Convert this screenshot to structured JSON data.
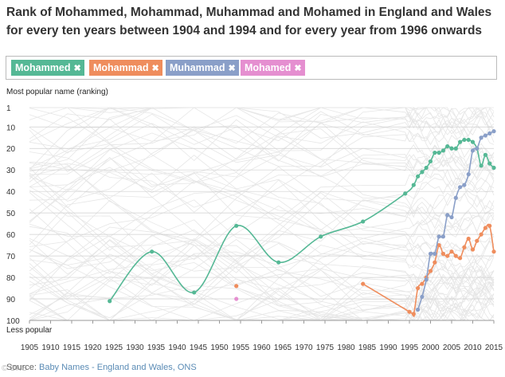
{
  "title": "Rank of Mohammed, Mohammad, Muhammad and Mohamed in England and Wales for every ten years between 1904 and 1994 and for every year from 1996 onwards",
  "filter_chips": [
    {
      "label": "Mohammed",
      "remove_icon": "✖",
      "color": "#55b895"
    },
    {
      "label": "Mohammad",
      "remove_icon": "✖",
      "color": "#ef8d5d"
    },
    {
      "label": "Muhammad",
      "remove_icon": "✖",
      "color": "#8a9fc8"
    },
    {
      "label": "Mohamed",
      "remove_icon": "✖",
      "color": "#e58fd0"
    }
  ],
  "y_axis_top_label": "Most popular name (ranking)",
  "y_axis_bottom_label": "Less popular",
  "source": {
    "label": "Source:",
    "link_text": "Baby Names - England and Wales, ONS"
  },
  "watermark": "© ONS",
  "chart_data": {
    "type": "line",
    "xlim": [
      1905,
      2015
    ],
    "ylim": [
      100,
      1
    ],
    "y_reversed": true,
    "x_ticks": [
      1905,
      1910,
      1915,
      1920,
      1925,
      1930,
      1935,
      1940,
      1945,
      1950,
      1955,
      1960,
      1965,
      1970,
      1975,
      1980,
      1985,
      1990,
      1995,
      2000,
      2005,
      2010,
      2015
    ],
    "y_ticks": [
      1,
      10,
      20,
      30,
      40,
      50,
      60,
      70,
      80,
      90,
      100
    ],
    "grid": true,
    "series": [
      {
        "name": "Mohammed",
        "color": "#55b895",
        "x": [
          1924,
          1934,
          1944,
          1954,
          1964,
          1974,
          1984,
          1994,
          1996,
          1997,
          1998,
          1999,
          2000,
          2001,
          2002,
          2003,
          2004,
          2005,
          2006,
          2007,
          2008,
          2009,
          2010,
          2011,
          2012,
          2013,
          2014,
          2015
        ],
        "y": [
          91,
          68,
          87,
          56,
          73,
          61,
          54,
          41,
          37,
          33,
          31,
          29,
          26,
          22,
          22,
          21,
          19,
          20,
          20,
          17,
          16,
          16,
          17,
          20,
          28,
          23,
          27,
          29
        ]
      },
      {
        "name": "Mohammad",
        "color": "#ef8d5d",
        "x": [
          1954,
          1984,
          1995,
          1996,
          1997,
          1998,
          1999,
          2000,
          2001,
          2002,
          2003,
          2004,
          2005,
          2006,
          2007,
          2008,
          2009,
          2010,
          2011,
          2012,
          2013,
          2014,
          2015
        ],
        "y": [
          84,
          83,
          96,
          97,
          85,
          83,
          80,
          77,
          73,
          65,
          69,
          70,
          68,
          70,
          71,
          66,
          62,
          67,
          63,
          60,
          57,
          56,
          68
        ]
      },
      {
        "name": "Muhammad",
        "color": "#8a9fc8",
        "x": [
          1997,
          1998,
          1999,
          2000,
          2001,
          2002,
          2003,
          2004,
          2005,
          2006,
          2007,
          2008,
          2009,
          2010,
          2011,
          2012,
          2013,
          2014,
          2015
        ],
        "y": [
          95,
          89,
          81,
          69,
          69,
          61,
          61,
          51,
          52,
          43,
          38,
          37,
          32,
          21,
          20,
          15,
          14,
          13,
          12
        ]
      },
      {
        "name": "Mohamed",
        "color": "#e58fd0",
        "x": [
          1954
        ],
        "y": [
          90
        ]
      }
    ]
  }
}
